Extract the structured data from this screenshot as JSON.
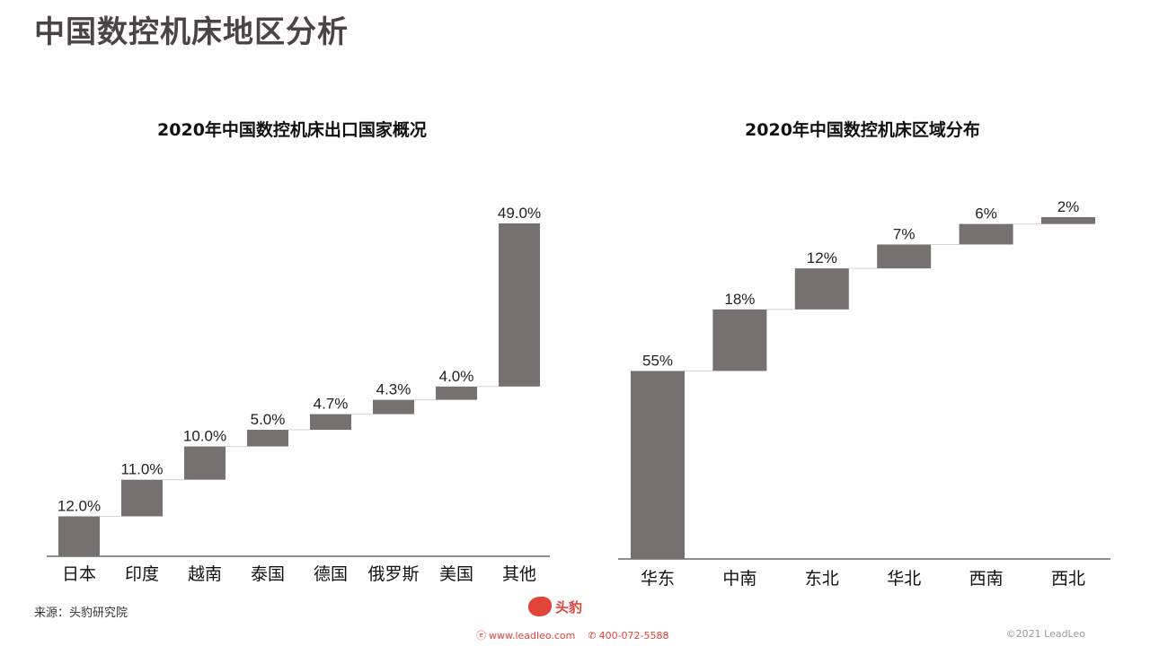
{
  "page": {
    "title": "中国数控机床地区分析"
  },
  "source_text": "来源：头豹研究院",
  "footer": {
    "brand": "头豹",
    "website": "www.leadleo.com",
    "phone": "400-072-5588",
    "copyright": "©2021 LeadLeo",
    "accent_color": "#e0443a"
  },
  "colors": {
    "bar": "#767070",
    "connector": "#d2d2d2"
  },
  "chart_data": [
    {
      "type": "bar",
      "subtype": "waterfall",
      "title": "2020年中国数控机床出口国家概况",
      "categories": [
        "日本",
        "印度",
        "越南",
        "泰国",
        "德国",
        "俄罗斯",
        "美国",
        "其他"
      ],
      "values": [
        12.0,
        11.0,
        10.0,
        5.0,
        4.7,
        4.3,
        4.0,
        49.0
      ],
      "labels": [
        "12.0%",
        "11.0%",
        "10.0%",
        "5.0%",
        "4.7%",
        "4.3%",
        "4.0%",
        "49.0%"
      ],
      "unit": "%",
      "ylim": [
        0,
        100
      ]
    },
    {
      "type": "bar",
      "subtype": "waterfall",
      "title": "2020年中国数控机床区域分布",
      "categories": [
        "华东",
        "中南",
        "东北",
        "华北",
        "西南",
        "西北"
      ],
      "values": [
        55,
        18,
        12,
        7,
        6,
        2
      ],
      "labels": [
        "55%",
        "18%",
        "12%",
        "7%",
        "6%",
        "2%"
      ],
      "unit": "%",
      "ylim": [
        0,
        100
      ]
    }
  ]
}
